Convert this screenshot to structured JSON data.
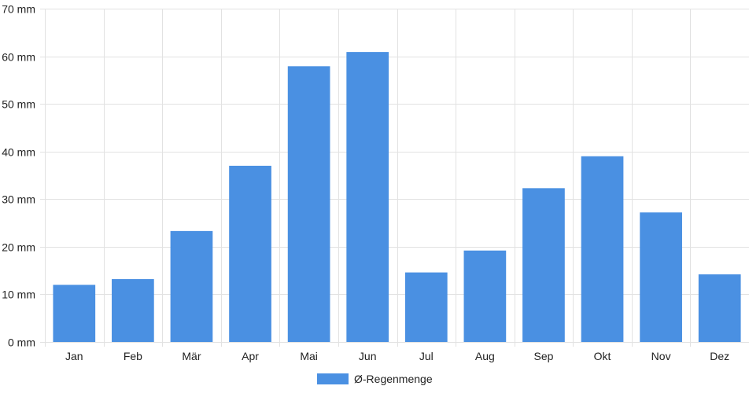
{
  "chart_data": {
    "type": "bar",
    "categories": [
      "Jan",
      "Feb",
      "Mär",
      "Apr",
      "Mai",
      "Jun",
      "Jul",
      "Aug",
      "Sep",
      "Okt",
      "Nov",
      "Dez"
    ],
    "series": [
      {
        "name": "Ø-Regenmenge",
        "values": [
          12,
          13.2,
          23.3,
          37,
          57.9,
          60.9,
          14.6,
          19.2,
          32.3,
          39,
          27.2,
          14.2
        ],
        "color": "#4a90e2"
      }
    ],
    "y_ticks": [
      0,
      10,
      20,
      30,
      40,
      50,
      60,
      70
    ],
    "y_unit": "mm",
    "ylim": [
      0,
      70
    ],
    "grid": true,
    "legend_position": "bottom-center"
  }
}
